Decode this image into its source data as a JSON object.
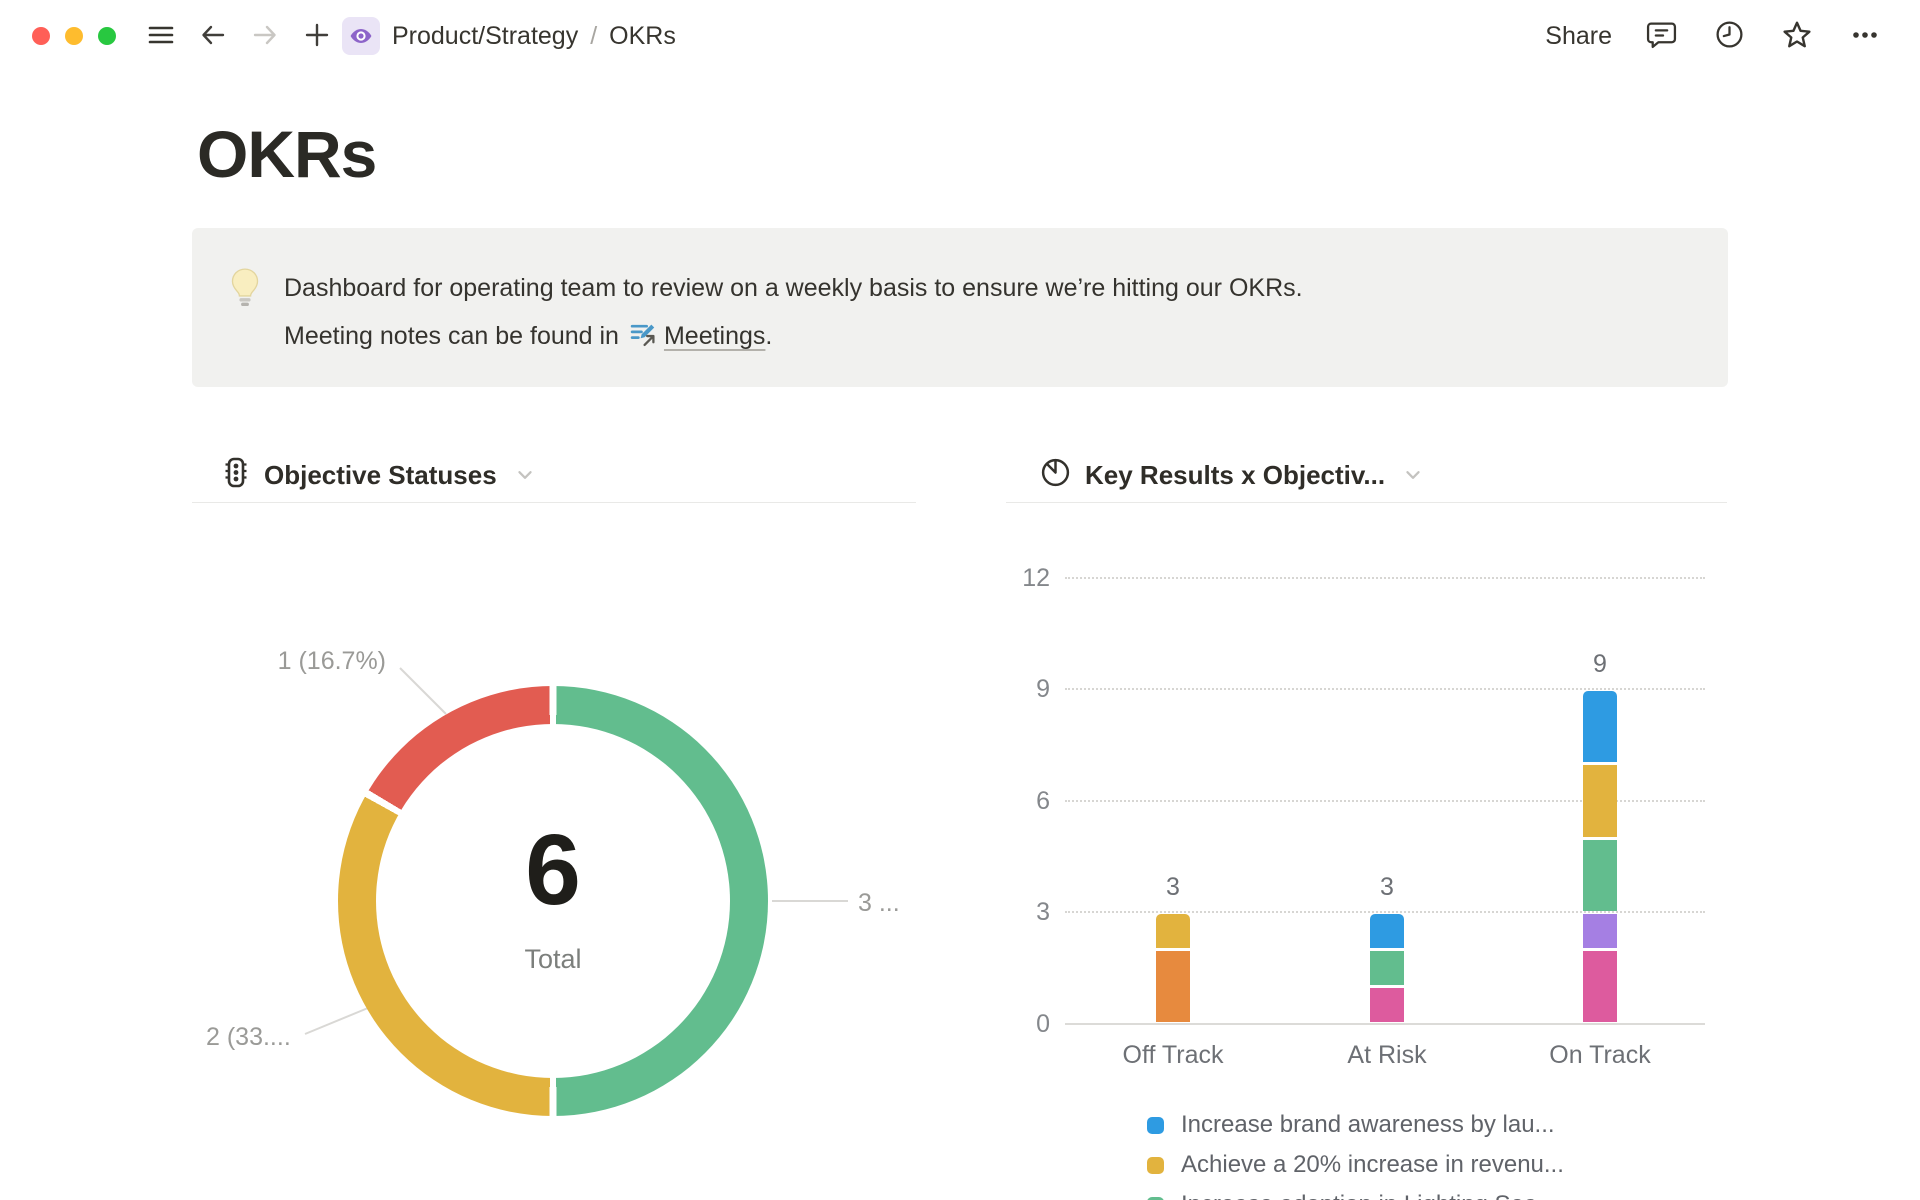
{
  "titlebar": {
    "breadcrumb": {
      "parent": "Product/Strategy",
      "separator": "/",
      "current": "OKRs"
    },
    "share_label": "Share"
  },
  "page": {
    "title": "OKRs",
    "callout": {
      "icon": "lightbulb",
      "line1": "Dashboard for operating team to review on a weekly basis to ensure we’re hitting our OKRs.",
      "line2_prefix": "Meeting notes can be found in",
      "link_text": "Meetings",
      "line2_suffix": "."
    }
  },
  "chart_data": [
    {
      "type": "pie",
      "title": "Objective Statuses",
      "total": 6,
      "total_label": "Total",
      "slices": [
        {
          "label": "3 ...",
          "value": 3,
          "percent": 50.0,
          "color": "#62bd8e"
        },
        {
          "label": "2 (33....",
          "value": 2,
          "percent": 33.3,
          "color": "#e2b33e"
        },
        {
          "label": "1 (16.7%)",
          "value": 1,
          "percent": 16.7,
          "color": "#e25c51"
        }
      ]
    },
    {
      "type": "bar",
      "stacked": true,
      "title": "Key Results x Objectiv...",
      "categories": [
        "Off Track",
        "At Risk",
        "On Track"
      ],
      "totals": [
        3,
        3,
        9
      ],
      "y_ticks": [
        0,
        3,
        6,
        9,
        12
      ],
      "ylim": [
        0,
        12
      ],
      "grid": "dotted-horizontal",
      "stacks": [
        [
          {
            "value": 2,
            "color": "#e78a3e"
          },
          {
            "value": 1,
            "color": "#e2b33e"
          }
        ],
        [
          {
            "value": 1,
            "color": "#dd5b9e"
          },
          {
            "value": 1,
            "color": "#62bd8e"
          },
          {
            "value": 1,
            "color": "#2e9be2"
          }
        ],
        [
          {
            "value": 2,
            "color": "#dd5b9e"
          },
          {
            "value": 1,
            "color": "#a57fe3"
          },
          {
            "value": 2,
            "color": "#62bd8e"
          },
          {
            "value": 2,
            "color": "#e2b33e"
          },
          {
            "value": 2,
            "color": "#2e9be2"
          }
        ]
      ],
      "legend_position": "bottom",
      "legend": [
        {
          "color": "#2e9be2",
          "label": "Increase brand awareness by lau..."
        },
        {
          "color": "#e2b33e",
          "label": "Achieve a 20% increase in revenu..."
        },
        {
          "color": "#62bd8e",
          "label": "Increase adoption in Lighting Sea..."
        }
      ]
    }
  ]
}
